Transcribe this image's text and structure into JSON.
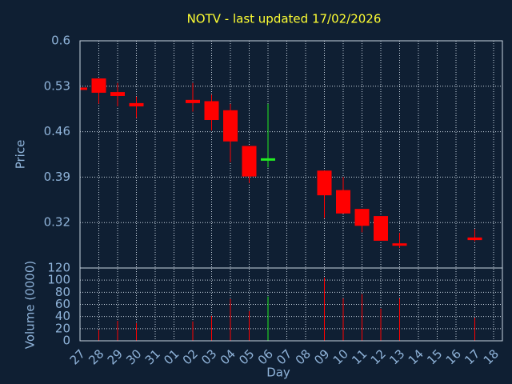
{
  "chart_data": {
    "type": "candlestick",
    "title": "NOTV - last updated 17/02/2026",
    "ylabel": "Price",
    "volume_ylabel": "Volume (0000)",
    "xlabel": "Day",
    "categories": [
      "27",
      "28",
      "29",
      "30",
      "31",
      "01",
      "02",
      "03",
      "04",
      "05",
      "06",
      "07",
      "08",
      "09",
      "10",
      "11",
      "12",
      "13",
      "14",
      "15",
      "16",
      "17",
      "18"
    ],
    "open": [
      0.528,
      0.542,
      0.521,
      0.504,
      null,
      null,
      0.509,
      0.507,
      0.493,
      0.438,
      0.416,
      null,
      null,
      0.4,
      0.37,
      0.341,
      0.33,
      0.288,
      null,
      null,
      null,
      0.297,
      null
    ],
    "high": [
      0.528,
      0.542,
      0.535,
      0.514,
      null,
      null,
      0.535,
      0.517,
      0.503,
      0.438,
      0.503,
      null,
      null,
      0.4,
      0.39,
      0.341,
      0.33,
      0.304,
      null,
      null,
      null,
      0.31,
      null
    ],
    "low": [
      0.526,
      0.503,
      0.499,
      0.481,
      null,
      null,
      0.491,
      0.462,
      0.413,
      0.381,
      0.405,
      null,
      null,
      0.327,
      0.334,
      0.305,
      0.292,
      0.281,
      null,
      null,
      null,
      0.291,
      null
    ],
    "close": [
      0.526,
      0.52,
      0.515,
      0.499,
      null,
      null,
      0.504,
      0.478,
      0.445,
      0.391,
      0.419,
      null,
      null,
      0.362,
      0.334,
      0.315,
      0.292,
      0.286,
      null,
      null,
      null,
      0.293,
      null
    ],
    "volume": [
      0,
      18,
      33,
      29,
      null,
      null,
      32,
      41,
      69,
      49,
      73,
      null,
      null,
      104,
      70,
      77,
      53,
      70,
      null,
      null,
      null,
      38,
      null
    ],
    "up_color": "#22ee22",
    "down_color": "#ff0000",
    "ylim": [
      0.25,
      0.6
    ],
    "yticks": [
      0.32,
      0.39,
      0.46,
      0.53,
      0.6
    ],
    "volume_ylim": [
      0,
      120
    ],
    "volume_yticks": [
      0,
      20,
      40,
      60,
      80,
      100,
      120
    ],
    "grid": true
  }
}
